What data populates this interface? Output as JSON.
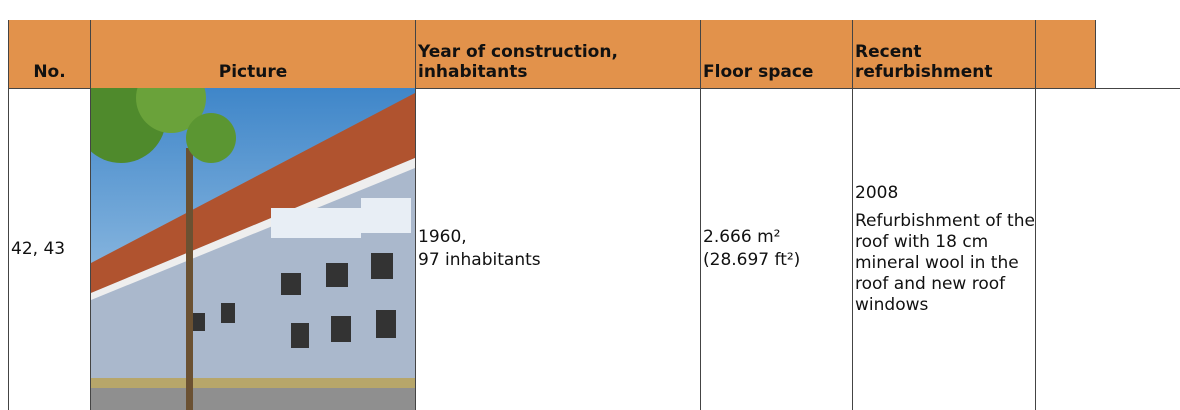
{
  "table": {
    "headers": [
      "No.",
      "Picture",
      "Year of construction, inhabitants",
      "Floor space",
      "Recent refurbishment"
    ],
    "rows": [
      [
        "42, 43",
        "",
        [
          "1960,",
          "97 inhabitants"
        ],
        [
          "2.666 m²",
          "(28.697 ft²)"
        ],
        [
          "2008",
          "Refurbishment of the roof with 18 cm mineral wool in the roof and new roof windows"
        ]
      ]
    ]
  }
}
